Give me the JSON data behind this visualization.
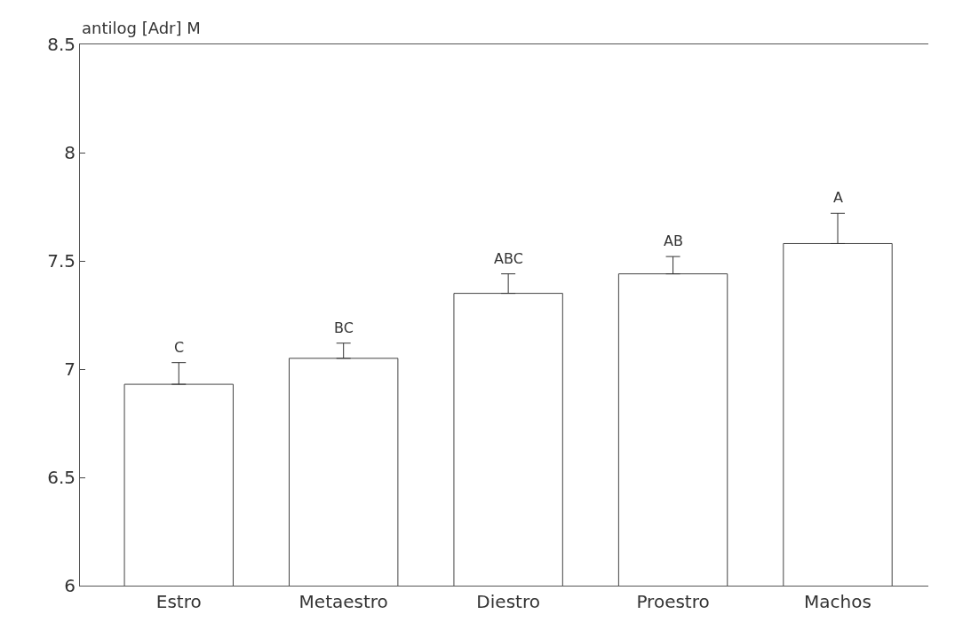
{
  "chart_data": {
    "type": "bar",
    "ylabel": "antilog [Adr] M",
    "categories": [
      "Estro",
      "Metaestro",
      "Diestro",
      "Proestro",
      "Machos"
    ],
    "values": [
      6.93,
      7.05,
      7.35,
      7.44,
      7.58
    ],
    "errors": [
      [
        6.93,
        7.03
      ],
      [
        7.05,
        7.12
      ],
      [
        7.35,
        7.44
      ],
      [
        7.44,
        7.52
      ],
      [
        7.58,
        7.72
      ]
    ],
    "value_labels": [
      "C",
      "BC",
      "ABC",
      "AB",
      "A"
    ],
    "color": "#ffffff",
    "ylim": [
      6,
      8.5
    ],
    "yticks": [
      6,
      6.5,
      7,
      7.5,
      8,
      8.5
    ]
  }
}
